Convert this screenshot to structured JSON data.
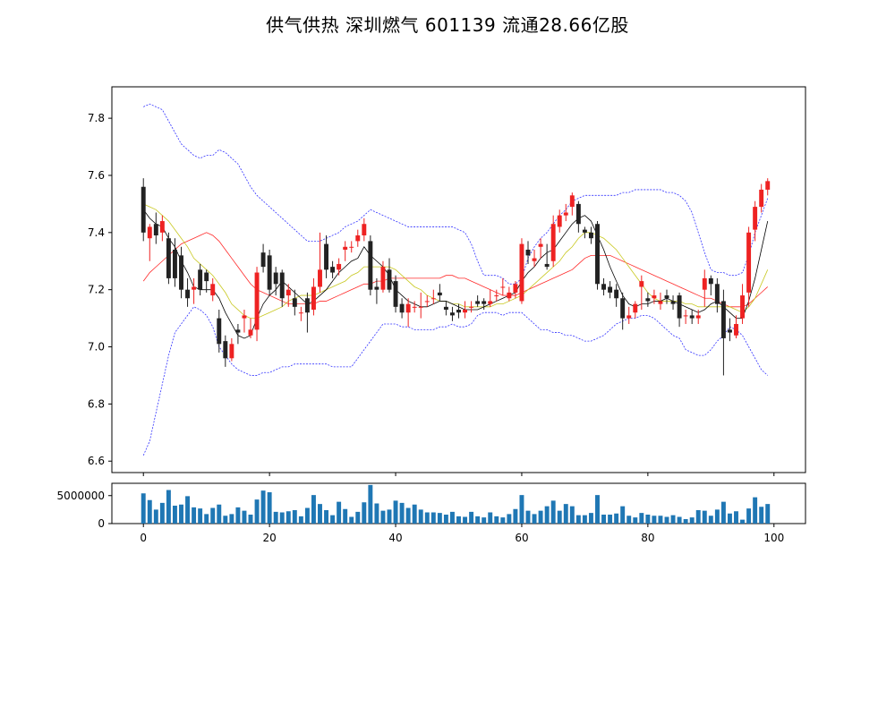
{
  "chart_data": {
    "type": "candlestick",
    "title": "供气供热 深圳燃气 601139 流通28.66亿股",
    "x": [
      0,
      1,
      2,
      3,
      4,
      5,
      6,
      7,
      8,
      9,
      10,
      11,
      12,
      13,
      14,
      15,
      16,
      17,
      18,
      19,
      20,
      21,
      22,
      23,
      24,
      25,
      26,
      27,
      28,
      29,
      30,
      31,
      32,
      33,
      34,
      35,
      36,
      37,
      38,
      39,
      40,
      41,
      42,
      43,
      44,
      45,
      46,
      47,
      48,
      49,
      50,
      51,
      52,
      53,
      54,
      55,
      56,
      57,
      58,
      59,
      60,
      61,
      62,
      63,
      64,
      65,
      66,
      67,
      68,
      69,
      70,
      71,
      72,
      73,
      74,
      75,
      76,
      77,
      78,
      79,
      80,
      81,
      82,
      83,
      84,
      85,
      86,
      87,
      88,
      89,
      90,
      91,
      92,
      93,
      94,
      95,
      96,
      97,
      98,
      99
    ],
    "open": [
      7.56,
      7.38,
      7.43,
      7.4,
      7.38,
      7.34,
      7.32,
      7.2,
      7.2,
      7.27,
      7.26,
      7.18,
      7.1,
      7.02,
      6.96,
      7.06,
      7.1,
      7.04,
      7.06,
      7.33,
      7.32,
      7.26,
      7.26,
      7.18,
      7.17,
      7.12,
      7.17,
      7.13,
      7.21,
      7.36,
      7.28,
      7.27,
      7.34,
      7.35,
      7.37,
      7.39,
      7.37,
      7.21,
      7.2,
      7.27,
      7.23,
      7.15,
      7.12,
      7.14,
      7.14,
      7.16,
      7.17,
      7.19,
      7.14,
      7.12,
      7.13,
      7.12,
      7.14,
      7.16,
      7.16,
      7.15,
      7.18,
      7.21,
      7.17,
      7.19,
      7.16,
      7.34,
      7.3,
      7.35,
      7.29,
      7.3,
      7.42,
      7.46,
      7.49,
      7.5,
      7.41,
      7.4,
      7.43,
      7.22,
      7.21,
      7.2,
      7.17,
      7.1,
      7.12,
      7.21,
      7.17,
      7.17,
      7.15,
      7.18,
      7.16,
      7.18,
      7.11,
      7.11,
      7.1,
      7.2,
      7.24,
      7.22,
      7.16,
      7.06,
      7.04,
      7.1,
      7.19,
      7.41,
      7.49,
      7.55
    ],
    "close": [
      7.4,
      7.42,
      7.39,
      7.44,
      7.24,
      7.24,
      7.2,
      7.17,
      7.21,
      7.2,
      7.23,
      7.22,
      7.01,
      6.96,
      7.01,
      7.05,
      7.11,
      7.06,
      7.26,
      7.28,
      7.2,
      7.22,
      7.17,
      7.2,
      7.14,
      7.12,
      7.12,
      7.21,
      7.27,
      7.27,
      7.26,
      7.29,
      7.35,
      7.35,
      7.39,
      7.43,
      7.2,
      7.2,
      7.28,
      7.2,
      7.14,
      7.12,
      7.15,
      7.14,
      7.14,
      7.16,
      7.17,
      7.18,
      7.13,
      7.11,
      7.12,
      7.13,
      7.14,
      7.15,
      7.15,
      7.16,
      7.18,
      7.21,
      7.19,
      7.22,
      7.36,
      7.32,
      7.31,
      7.36,
      7.28,
      7.43,
      7.46,
      7.47,
      7.53,
      7.43,
      7.4,
      7.38,
      7.22,
      7.2,
      7.19,
      7.17,
      7.1,
      7.11,
      7.15,
      7.23,
      7.16,
      7.18,
      7.16,
      7.17,
      7.15,
      7.1,
      7.11,
      7.1,
      7.11,
      7.24,
      7.22,
      7.15,
      7.03,
      7.05,
      7.08,
      7.18,
      7.4,
      7.49,
      7.55,
      7.58
    ],
    "high": [
      7.59,
      7.43,
      7.47,
      7.46,
      7.4,
      7.38,
      7.35,
      7.24,
      7.24,
      7.29,
      7.27,
      7.24,
      7.13,
      7.04,
      7.03,
      7.08,
      7.13,
      7.1,
      7.28,
      7.36,
      7.34,
      7.28,
      7.27,
      7.22,
      7.2,
      7.14,
      7.19,
      7.24,
      7.4,
      7.39,
      7.3,
      7.31,
      7.37,
      7.37,
      7.41,
      7.45,
      7.39,
      7.24,
      7.3,
      7.31,
      7.25,
      7.17,
      7.17,
      7.16,
      7.19,
      7.18,
      7.2,
      7.22,
      7.16,
      7.14,
      7.15,
      7.16,
      7.16,
      7.18,
      7.17,
      7.2,
      7.2,
      7.24,
      7.21,
      7.23,
      7.38,
      7.37,
      7.34,
      7.38,
      7.36,
      7.46,
      7.48,
      7.5,
      7.54,
      7.51,
      7.42,
      7.42,
      7.44,
      7.24,
      7.23,
      7.22,
      7.19,
      7.14,
      7.16,
      7.25,
      7.19,
      7.2,
      7.19,
      7.2,
      7.18,
      7.19,
      7.13,
      7.13,
      7.13,
      7.27,
      7.25,
      7.24,
      7.2,
      7.1,
      7.11,
      7.22,
      7.42,
      7.51,
      7.57,
      7.59
    ],
    "low": [
      7.37,
      7.3,
      7.36,
      7.37,
      7.22,
      7.21,
      7.17,
      7.14,
      7.15,
      7.18,
      7.19,
      7.16,
      6.98,
      6.93,
      6.95,
      7.01,
      7.05,
      7.03,
      7.02,
      7.26,
      7.18,
      7.18,
      7.14,
      7.14,
      7.11,
      7.09,
      7.05,
      7.11,
      7.19,
      7.24,
      7.24,
      7.25,
      7.3,
      7.33,
      7.35,
      7.37,
      7.18,
      7.15,
      7.19,
      7.19,
      7.12,
      7.1,
      7.07,
      7.12,
      7.1,
      7.14,
      7.15,
      7.16,
      7.11,
      7.09,
      7.1,
      7.1,
      7.12,
      7.14,
      7.13,
      7.14,
      7.16,
      7.18,
      7.16,
      7.17,
      7.15,
      7.29,
      7.28,
      7.31,
      7.27,
      7.28,
      7.4,
      7.44,
      7.46,
      7.4,
      7.38,
      7.36,
      7.2,
      7.18,
      7.17,
      7.14,
      7.06,
      7.08,
      7.1,
      7.13,
      7.14,
      7.15,
      7.13,
      7.15,
      7.13,
      7.07,
      7.08,
      7.08,
      7.08,
      7.14,
      7.18,
      7.12,
      6.9,
      7.02,
      7.03,
      7.08,
      7.14,
      7.37,
      7.47,
      7.53
    ],
    "ma5": [
      7.48,
      7.45,
      7.43,
      7.42,
      7.38,
      7.35,
      7.3,
      7.26,
      7.21,
      7.2,
      7.2,
      7.2,
      7.17,
      7.12,
      7.08,
      7.04,
      7.03,
      7.04,
      7.1,
      7.15,
      7.18,
      7.2,
      7.23,
      7.21,
      7.19,
      7.17,
      7.15,
      7.16,
      7.18,
      7.2,
      7.23,
      7.26,
      7.28,
      7.3,
      7.31,
      7.35,
      7.32,
      7.3,
      7.28,
      7.25,
      7.2,
      7.18,
      7.16,
      7.15,
      7.14,
      7.14,
      7.15,
      7.16,
      7.16,
      7.15,
      7.14,
      7.13,
      7.13,
      7.13,
      7.14,
      7.15,
      7.16,
      7.17,
      7.18,
      7.19,
      7.23,
      7.26,
      7.28,
      7.31,
      7.33,
      7.34,
      7.37,
      7.4,
      7.43,
      7.45,
      7.46,
      7.44,
      7.39,
      7.34,
      7.28,
      7.23,
      7.18,
      7.15,
      7.14,
      7.15,
      7.15,
      7.16,
      7.16,
      7.17,
      7.16,
      7.15,
      7.14,
      7.13,
      7.12,
      7.13,
      7.15,
      7.16,
      7.14,
      7.12,
      7.1,
      7.1,
      7.16,
      7.24,
      7.34,
      7.44
    ],
    "ma10": [
      7.5,
      7.49,
      7.48,
      7.46,
      7.44,
      7.41,
      7.38,
      7.35,
      7.31,
      7.29,
      7.27,
      7.25,
      7.22,
      7.19,
      7.15,
      7.13,
      7.11,
      7.1,
      7.1,
      7.11,
      7.12,
      7.13,
      7.14,
      7.16,
      7.17,
      7.18,
      7.18,
      7.18,
      7.19,
      7.2,
      7.21,
      7.22,
      7.23,
      7.25,
      7.26,
      7.28,
      7.28,
      7.28,
      7.28,
      7.28,
      7.27,
      7.25,
      7.23,
      7.21,
      7.2,
      7.18,
      7.17,
      7.16,
      7.16,
      7.15,
      7.15,
      7.14,
      7.14,
      7.14,
      7.14,
      7.14,
      7.15,
      7.15,
      7.16,
      7.17,
      7.18,
      7.2,
      7.22,
      7.24,
      7.26,
      7.28,
      7.3,
      7.33,
      7.35,
      7.38,
      7.4,
      7.4,
      7.39,
      7.38,
      7.36,
      7.34,
      7.31,
      7.28,
      7.25,
      7.22,
      7.19,
      7.17,
      7.16,
      7.16,
      7.16,
      7.16,
      7.15,
      7.15,
      7.14,
      7.14,
      7.14,
      7.14,
      7.14,
      7.14,
      7.13,
      7.12,
      7.14,
      7.17,
      7.22,
      7.27
    ],
    "ma20": [
      7.23,
      7.26,
      7.28,
      7.3,
      7.32,
      7.34,
      7.36,
      7.37,
      7.38,
      7.39,
      7.4,
      7.39,
      7.37,
      7.34,
      7.31,
      7.28,
      7.25,
      7.22,
      7.2,
      7.19,
      7.18,
      7.17,
      7.16,
      7.15,
      7.15,
      7.15,
      7.15,
      7.15,
      7.16,
      7.16,
      7.17,
      7.18,
      7.19,
      7.2,
      7.21,
      7.22,
      7.22,
      7.23,
      7.23,
      7.24,
      7.24,
      7.24,
      7.24,
      7.24,
      7.24,
      7.24,
      7.24,
      7.24,
      7.25,
      7.25,
      7.24,
      7.24,
      7.23,
      7.22,
      7.21,
      7.2,
      7.19,
      7.18,
      7.18,
      7.18,
      7.19,
      7.2,
      7.21,
      7.22,
      7.23,
      7.24,
      7.25,
      7.26,
      7.27,
      7.29,
      7.31,
      7.32,
      7.32,
      7.32,
      7.32,
      7.31,
      7.3,
      7.29,
      7.28,
      7.27,
      7.26,
      7.25,
      7.24,
      7.23,
      7.22,
      7.21,
      7.2,
      7.19,
      7.18,
      7.17,
      7.17,
      7.16,
      7.15,
      7.14,
      7.14,
      7.14,
      7.15,
      7.17,
      7.19,
      7.21
    ],
    "boll_upper": [
      7.84,
      7.85,
      7.84,
      7.83,
      7.79,
      7.75,
      7.71,
      7.69,
      7.67,
      7.66,
      7.67,
      7.67,
      7.69,
      7.68,
      7.66,
      7.64,
      7.6,
      7.56,
      7.53,
      7.51,
      7.49,
      7.47,
      7.45,
      7.43,
      7.41,
      7.39,
      7.37,
      7.37,
      7.37,
      7.38,
      7.39,
      7.4,
      7.42,
      7.43,
      7.44,
      7.46,
      7.48,
      7.47,
      7.46,
      7.45,
      7.44,
      7.43,
      7.42,
      7.42,
      7.42,
      7.42,
      7.42,
      7.42,
      7.42,
      7.42,
      7.41,
      7.4,
      7.36,
      7.3,
      7.25,
      7.25,
      7.25,
      7.24,
      7.22,
      7.22,
      7.24,
      7.31,
      7.35,
      7.38,
      7.4,
      7.43,
      7.46,
      7.48,
      7.51,
      7.52,
      7.53,
      7.53,
      7.53,
      7.53,
      7.53,
      7.53,
      7.54,
      7.54,
      7.55,
      7.55,
      7.55,
      7.55,
      7.55,
      7.54,
      7.54,
      7.53,
      7.51,
      7.47,
      7.4,
      7.33,
      7.27,
      7.26,
      7.26,
      7.25,
      7.25,
      7.26,
      7.32,
      7.4,
      7.46,
      7.52
    ],
    "boll_lower": [
      6.62,
      6.67,
      6.77,
      6.87,
      6.97,
      7.05,
      7.08,
      7.11,
      7.14,
      7.13,
      7.11,
      7.07,
      7.0,
      6.97,
      6.94,
      6.92,
      6.91,
      6.9,
      6.9,
      6.91,
      6.91,
      6.92,
      6.93,
      6.93,
      6.94,
      6.94,
      6.94,
      6.94,
      6.94,
      6.94,
      6.93,
      6.93,
      6.93,
      6.93,
      6.96,
      6.99,
      7.02,
      7.05,
      7.08,
      7.08,
      7.08,
      7.07,
      7.07,
      7.06,
      7.06,
      7.06,
      7.06,
      7.07,
      7.07,
      7.08,
      7.07,
      7.07,
      7.08,
      7.11,
      7.12,
      7.12,
      7.12,
      7.11,
      7.12,
      7.12,
      7.12,
      7.1,
      7.08,
      7.06,
      7.06,
      7.05,
      7.05,
      7.04,
      7.04,
      7.03,
      7.02,
      7.02,
      7.03,
      7.04,
      7.06,
      7.08,
      7.09,
      7.1,
      7.1,
      7.11,
      7.11,
      7.1,
      7.08,
      7.06,
      7.04,
      7.03,
      6.99,
      6.98,
      6.97,
      6.97,
      6.99,
      7.02,
      7.04,
      7.07,
      7.06,
      7.04,
      7.0,
      6.96,
      6.92,
      6.9
    ],
    "volume": [
      5400000,
      4200000,
      2500000,
      3700000,
      6000000,
      3200000,
      3400000,
      4900000,
      2900000,
      2700000,
      1700000,
      2800000,
      3400000,
      1400000,
      1700000,
      2900000,
      2300000,
      1600000,
      4300000,
      5900000,
      5600000,
      2100000,
      2000000,
      2200000,
      2400000,
      1300000,
      2800000,
      5100000,
      3500000,
      2400000,
      1500000,
      3900000,
      2600000,
      1200000,
      2100000,
      3800000,
      6900000,
      3600000,
      2300000,
      2500000,
      4100000,
      3700000,
      2800000,
      3400000,
      2500000,
      2000000,
      2000000,
      1900000,
      1600000,
      2100000,
      1300000,
      1200000,
      2100000,
      1300000,
      1100000,
      2000000,
      1300000,
      1100000,
      1700000,
      2600000,
      5100000,
      2300000,
      1700000,
      2300000,
      3100000,
      4100000,
      2300000,
      3500000,
      3100000,
      1500000,
      1500000,
      1900000,
      5100000,
      1600000,
      1600000,
      1800000,
      3100000,
      1400000,
      1100000,
      1900000,
      1600000,
      1400000,
      1400000,
      1200000,
      1500000,
      1200000,
      800000,
      1100000,
      2400000,
      2300000,
      1400000,
      2500000,
      3900000,
      1800000,
      2200000,
      700000,
      2700000,
      4700000,
      3000000,
      3500000
    ],
    "volume_max": 6900000,
    "xlim": [
      -5,
      105
    ],
    "ylim": [
      6.56,
      7.91
    ],
    "volume_ylim": [
      0,
      7200000
    ],
    "xticks": [
      0,
      20,
      40,
      60,
      80,
      100
    ],
    "yticks": [
      6.6,
      6.8,
      7.0,
      7.2,
      7.4,
      7.6,
      7.8
    ],
    "volume_yticks": [
      0,
      5000000
    ],
    "grid": false,
    "colors": {
      "up": "#ee2222",
      "down": "#222222",
      "ma5": "#000000",
      "ma10": "#c8c820",
      "ma20": "#ff2a2a",
      "boll": "#3333ff",
      "volume": "#1f77b4"
    }
  }
}
